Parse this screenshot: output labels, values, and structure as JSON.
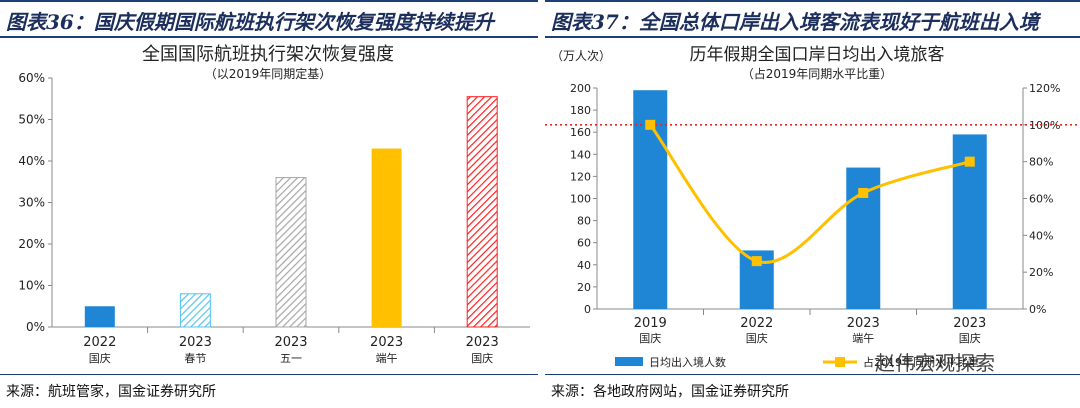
{
  "left": {
    "header": "图表36：国庆假期国际航班执行架次恢复强度持续提升",
    "source": "来源：航班管家，国金证券研究所"
  },
  "right": {
    "header": "图表37：全国总体口岸出入境客流表现好于航班出入境",
    "source": "来源：各地政府网站，国金证券研究所"
  },
  "watermark": "赵伟宏观探索",
  "chart_data": [
    {
      "type": "bar",
      "title": "全国国际航班执行架次恢复强度",
      "subtitle": "（以2019年同期定基）",
      "categories": [
        "2022",
        "2023",
        "2023",
        "2023",
        "2023"
      ],
      "category_sublabels": [
        "国庆",
        "春节",
        "五一",
        "端午",
        "国庆"
      ],
      "values": [
        5,
        8,
        36,
        43,
        55.5
      ],
      "value_unit": "%",
      "colors": [
        "#1f86d6",
        "#59c3f0",
        "#a6a6a6",
        "#ffc000",
        "#ff2020"
      ],
      "patterns": [
        "solid",
        "hatch",
        "hatch",
        "solid",
        "hatch"
      ],
      "ylim": [
        0,
        60
      ],
      "yticks": [
        "0%",
        "10%",
        "20%",
        "30%",
        "40%",
        "50%",
        "60%"
      ],
      "grid": false
    },
    {
      "type": "bar",
      "title": "历年假期全国口岸日均出入境旅客",
      "subtitle": "（占2019年同期水平比重）",
      "y_unit_label": "（万人次）",
      "categories": [
        "2019",
        "2022",
        "2023",
        "2023"
      ],
      "category_sublabels": [
        "国庆",
        "国庆",
        "端午",
        "国庆"
      ],
      "series": [
        {
          "name": "日均出入境人数",
          "type": "bar",
          "axis": "left",
          "color": "#1f86d6",
          "values": [
            198,
            53,
            128,
            158
          ]
        },
        {
          "name": "占2019年同期水平比重",
          "type": "line",
          "axis": "right",
          "color": "#ffc000",
          "values": [
            100,
            26,
            63,
            80
          ]
        }
      ],
      "ylim": [
        0,
        200
      ],
      "yticks": [
        "0",
        "20",
        "40",
        "60",
        "80",
        "100",
        "120",
        "140",
        "160",
        "180",
        "200"
      ],
      "y2lim": [
        0,
        120
      ],
      "y2ticks": [
        "0%",
        "20%",
        "40%",
        "60%",
        "80%",
        "100%",
        "120%"
      ],
      "reference_line": {
        "axis": "right",
        "value": 100,
        "color": "#e8261e",
        "style": "dotted"
      },
      "legend_position": "bottom",
      "grid": false
    }
  ]
}
